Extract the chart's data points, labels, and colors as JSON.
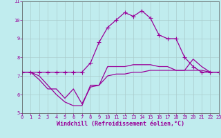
{
  "xlabel": "Windchill (Refroidissement éolien,°C)",
  "bg_color": "#c0ecee",
  "grid_color": "#aacccc",
  "line_color": "#990099",
  "xlim": [
    0,
    23
  ],
  "ylim": [
    5,
    11
  ],
  "xticks": [
    0,
    1,
    2,
    3,
    4,
    5,
    6,
    7,
    8,
    9,
    10,
    11,
    12,
    13,
    14,
    15,
    16,
    17,
    18,
    19,
    20,
    21,
    22,
    23
  ],
  "yticks": [
    5,
    6,
    7,
    8,
    9,
    10,
    11
  ],
  "line1_x": [
    0,
    1,
    2,
    3,
    4,
    5,
    6,
    7,
    8,
    9,
    10,
    11,
    12,
    13,
    14,
    15,
    16,
    17,
    18,
    19,
    20,
    21,
    22,
    23
  ],
  "line1_y": [
    7.2,
    7.2,
    7.2,
    7.2,
    7.2,
    7.2,
    7.2,
    7.2,
    7.7,
    8.8,
    9.6,
    10.0,
    10.4,
    10.2,
    10.5,
    10.1,
    9.2,
    9.0,
    9.0,
    8.0,
    7.5,
    7.2,
    7.2,
    7.2
  ],
  "line2_x": [
    0,
    1,
    2,
    3,
    4,
    5,
    6,
    7,
    8,
    9,
    10,
    11,
    12,
    13,
    14,
    15,
    16,
    17,
    18,
    19,
    20,
    21,
    22,
    23
  ],
  "line2_y": [
    7.2,
    7.2,
    6.8,
    6.3,
    6.3,
    5.8,
    6.3,
    5.5,
    6.4,
    6.5,
    7.5,
    7.5,
    7.5,
    7.6,
    7.6,
    7.6,
    7.5,
    7.5,
    7.3,
    7.3,
    7.9,
    7.5,
    7.2,
    7.2
  ],
  "line3_x": [
    0,
    1,
    2,
    3,
    4,
    5,
    6,
    7,
    8,
    9,
    10,
    11,
    12,
    13,
    14,
    15,
    16,
    17,
    18,
    19,
    20,
    21,
    22,
    23
  ],
  "line3_y": [
    7.2,
    7.2,
    7.0,
    6.5,
    6.0,
    5.6,
    5.4,
    5.4,
    6.5,
    6.5,
    7.0,
    7.1,
    7.1,
    7.2,
    7.2,
    7.3,
    7.3,
    7.3,
    7.3,
    7.3,
    7.3,
    7.3,
    7.2,
    7.2
  ],
  "line1_has_marker": true,
  "line2_has_marker": false,
  "line3_has_marker": false,
  "marker": "+",
  "markersize": 4,
  "linewidth": 0.9,
  "xlabel_fontsize": 6,
  "tick_fontsize": 5,
  "xlabel_color": "#990099",
  "tick_color": "#990099"
}
